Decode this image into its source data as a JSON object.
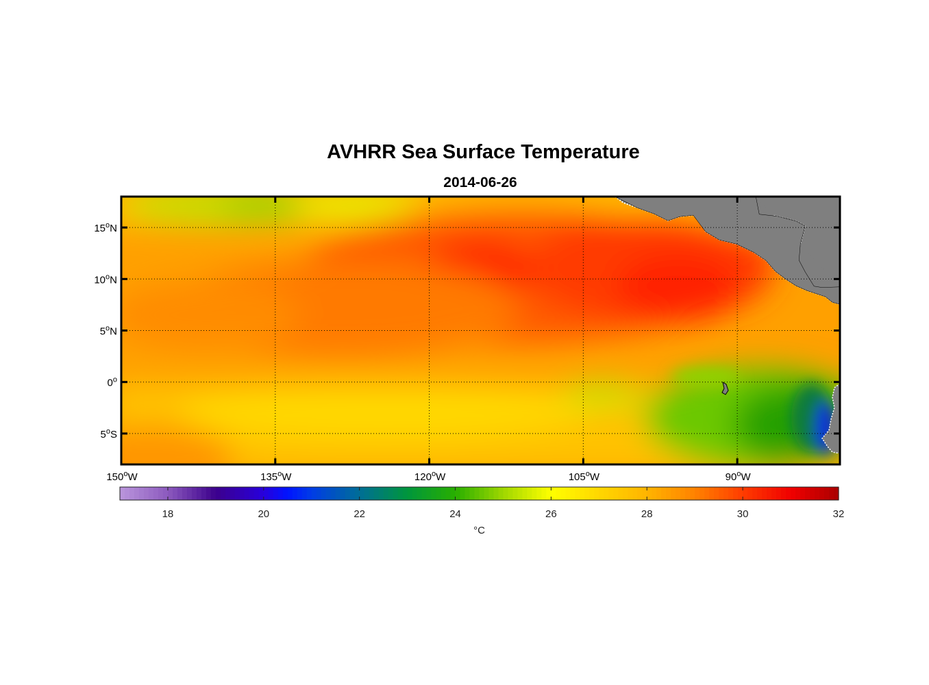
{
  "title": "AVHRR Sea Surface Temperature",
  "subtitle": "2014-06-26",
  "chart_data": {
    "type": "heatmap",
    "title": "AVHRR Sea Surface Temperature",
    "subtitle": "2014-06-26",
    "lon_range": [
      -150,
      -80
    ],
    "lat_range": [
      -8,
      18
    ],
    "x_ticks": [
      {
        "value": -150,
        "deg": "150",
        "hemi": "W"
      },
      {
        "value": -135,
        "deg": "135",
        "hemi": "W"
      },
      {
        "value": -120,
        "deg": "120",
        "hemi": "W"
      },
      {
        "value": -105,
        "deg": "105",
        "hemi": "W"
      },
      {
        "value": -90,
        "deg": "90",
        "hemi": "W"
      }
    ],
    "y_ticks": [
      {
        "value": 15,
        "deg": "15",
        "hemi": "N"
      },
      {
        "value": 10,
        "deg": "10",
        "hemi": "N"
      },
      {
        "value": 5,
        "deg": "5",
        "hemi": "N"
      },
      {
        "value": 0,
        "deg": "0",
        "hemi": ""
      },
      {
        "value": -5,
        "deg": "5",
        "hemi": "S"
      }
    ],
    "grid": true,
    "colorbar": {
      "label": "°C",
      "min": 17,
      "max": 32,
      "ticks": [
        "18",
        "20",
        "22",
        "24",
        "26",
        "28",
        "30",
        "32"
      ]
    },
    "land_color": "#7f7f7f",
    "sst_pattern": [
      {
        "lat": 17,
        "lon_from": -150,
        "lon_to": -130,
        "sst": 25.3
      },
      {
        "lat": 10,
        "lon_from": -118,
        "lon_to": -95,
        "sst": 29.8
      },
      {
        "lat": 5,
        "lon_from": -150,
        "lon_to": -85,
        "sst": 28.7
      },
      {
        "lat": -2,
        "lon_from": -150,
        "lon_to": -100,
        "sst": 27.0
      },
      {
        "lat": -4,
        "lon_from": -92,
        "lon_to": -85,
        "sst": 24.5
      },
      {
        "lat": -4,
        "lon_from": -84,
        "lon_to": -81,
        "sst": 21.0
      }
    ]
  }
}
